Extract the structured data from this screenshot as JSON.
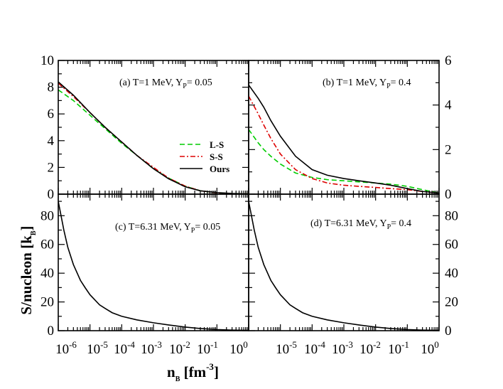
{
  "chart_data": {
    "type": "line",
    "xlabel": "n_B [fm^-3]",
    "ylabel": "S/nucleon [k_B]",
    "x_axis": {
      "scale": "log",
      "range": [
        1e-06,
        1
      ],
      "tick_labels": [
        "10-6",
        "10-5",
        "10-4",
        "10-3",
        "10-2",
        "10-1",
        "100"
      ]
    },
    "legend": {
      "placement": "panel-a-lower-right",
      "entries": [
        {
          "name": "L-S",
          "color": "#00cc00",
          "dash": "dashed"
        },
        {
          "name": "S-S",
          "color": "#dd0000",
          "dash": "dash-dot"
        },
        {
          "name": "Ours",
          "color": "#000000",
          "dash": "solid"
        }
      ]
    },
    "panels": [
      {
        "id": "a",
        "label": "(a) T=1 MeV, Y",
        "sub": "P",
        "label_tail": "= 0.05",
        "ylim": [
          0,
          10
        ],
        "y_ticks": [
          0,
          2,
          4,
          6,
          8,
          10
        ],
        "series": [
          {
            "name": "L-S",
            "x": [
              1e-06,
              3e-06,
              1e-05,
              3e-05,
              0.0001,
              0.0003,
              0.001,
              0.003,
              0.01,
              0.03,
              0.1,
              0.3,
              1
            ],
            "y": [
              7.8,
              7.0,
              5.9,
              4.9,
              3.8,
              2.9,
              1.9,
              1.2,
              0.6,
              0.25,
              0.1,
              0.05,
              0.02
            ]
          },
          {
            "name": "S-S",
            "x": [
              1e-06,
              3e-06,
              1e-05,
              3e-05,
              0.0001,
              0.0003,
              0.001,
              0.003,
              0.01,
              0.03,
              0.1,
              0.3,
              1
            ],
            "y": [
              8.3,
              7.3,
              6.1,
              5.0,
              3.9,
              2.9,
              2.0,
              1.2,
              0.6,
              0.25,
              0.1,
              0.04,
              0.02
            ]
          },
          {
            "name": "Ours",
            "x": [
              1e-06,
              3e-06,
              1e-05,
              3e-05,
              0.0001,
              0.0003,
              0.001,
              0.003,
              0.01,
              0.03,
              0.1,
              0.3,
              1
            ],
            "y": [
              8.4,
              7.4,
              6.1,
              5.0,
              3.9,
              2.9,
              1.9,
              1.15,
              0.55,
              0.25,
              0.12,
              0.05,
              0.02
            ]
          }
        ]
      },
      {
        "id": "b",
        "label": "(b) T=1 MeV, Y",
        "sub": "P",
        "label_tail": "= 0.4",
        "ylim": [
          0,
          6
        ],
        "y_ticks": [
          0,
          2,
          4,
          6
        ],
        "series": [
          {
            "name": "L-S",
            "x": [
              1e-06,
              2e-06,
              3e-06,
              5e-06,
              1e-05,
              3e-05,
              0.0001,
              0.0003,
              0.001,
              0.003,
              0.01,
              0.03,
              0.1,
              0.3,
              1
            ],
            "y": [
              2.9,
              2.3,
              2.0,
              1.7,
              1.35,
              0.95,
              0.75,
              0.65,
              0.6,
              0.55,
              0.5,
              0.45,
              0.35,
              0.2,
              0.05
            ]
          },
          {
            "name": "S-S",
            "x": [
              1e-06,
              2e-06,
              3e-06,
              5e-06,
              1e-05,
              3e-05,
              0.0001,
              0.0003,
              0.001,
              0.003,
              0.01,
              0.03,
              0.1,
              0.3,
              1
            ],
            "y": [
              4.4,
              3.6,
              3.1,
              2.5,
              1.8,
              1.1,
              0.7,
              0.5,
              0.4,
              0.35,
              0.3,
              0.25,
              0.2,
              0.12,
              0.05
            ]
          },
          {
            "name": "Ours",
            "x": [
              1e-06,
              2e-06,
              3e-06,
              5e-06,
              1e-05,
              3e-05,
              0.0001,
              0.0003,
              0.001,
              0.003,
              0.01,
              0.03,
              0.1,
              0.3,
              1
            ],
            "y": [
              4.9,
              4.3,
              3.9,
              3.3,
              2.6,
              1.7,
              1.1,
              0.85,
              0.7,
              0.6,
              0.5,
              0.4,
              0.25,
              0.12,
              0.05
            ]
          }
        ]
      },
      {
        "id": "c",
        "label": "(c) T=6.31 MeV, Y",
        "sub": "P",
        "label_tail": "= 0.05",
        "ylim": [
          0,
          95
        ],
        "y_ticks": [
          0,
          20,
          40,
          60,
          80
        ],
        "series": [
          {
            "name": "Ours",
            "x": [
              1e-06,
              1.5e-06,
              2e-06,
              3e-06,
              5e-06,
              7e-06,
              1e-05,
              2e-05,
              3e-05,
              5e-05,
              0.0001,
              0.0003,
              0.001,
              0.003,
              0.01,
              0.03,
              0.1,
              0.3,
              1
            ],
            "y": [
              90,
              70,
              58,
              46,
              35,
              30,
              25,
              18,
              15.5,
              12.5,
              10,
              7.5,
              5.5,
              4.0,
              2.5,
              1.5,
              0.8,
              0.4,
              0.2
            ]
          }
        ]
      },
      {
        "id": "d",
        "label": "(d) T=6.31 MeV, Y",
        "sub": "P",
        "label_tail": "= 0.4",
        "ylim": [
          0,
          95
        ],
        "y_ticks": [
          0,
          20,
          40,
          60,
          80
        ],
        "series": [
          {
            "name": "Ours",
            "x": [
              1e-06,
              1.5e-06,
              2e-06,
              3e-06,
              5e-06,
              7e-06,
              1e-05,
              2e-05,
              3e-05,
              5e-05,
              0.0001,
              0.0003,
              0.001,
              0.003,
              0.01,
              0.03,
              0.1,
              0.3,
              1
            ],
            "y": [
              90,
              70,
              58,
              46,
              35,
              30,
              25,
              18,
              15.5,
              12.5,
              10,
              7.5,
              5.5,
              4.0,
              2.5,
              1.5,
              0.8,
              0.4,
              0.2
            ]
          }
        ]
      }
    ]
  }
}
